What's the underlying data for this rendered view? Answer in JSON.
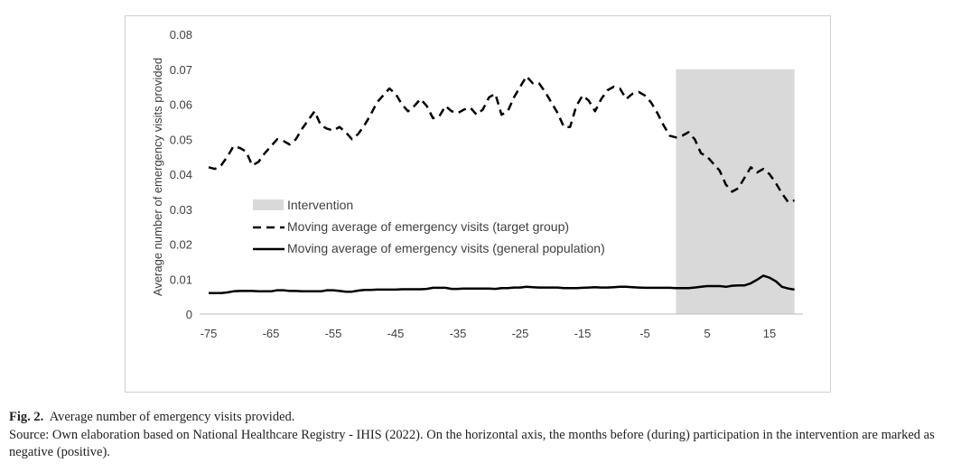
{
  "caption": {
    "label": "Fig. 2.",
    "title": "Average number of emergency visits provided.",
    "source": "Source: Own elaboration based on National Healthcare Registry - IHIS (2022). On the horizontal axis, the months before (during) participation in the intervention are marked as negative (positive)."
  },
  "chart_data": {
    "type": "line",
    "title": "",
    "xlabel": "",
    "ylabel": "Average number of emergency visits provided",
    "xlim": [
      -75,
      20
    ],
    "ylim": [
      0,
      0.08
    ],
    "x_ticks": [
      "-75",
      "-65",
      "-55",
      "-45",
      "-35",
      "-25",
      "-15",
      "-5",
      "5",
      "15"
    ],
    "x_tick_values": [
      -75,
      -65,
      -55,
      -45,
      -35,
      -25,
      -15,
      -5,
      5,
      15
    ],
    "y_ticks": [
      "0",
      "0.01",
      "0.02",
      "0.03",
      "0.04",
      "0.05",
      "0.06",
      "0.07",
      "0.08"
    ],
    "y_tick_values": [
      0,
      0.01,
      0.02,
      0.03,
      0.04,
      0.05,
      0.06,
      0.07,
      0.08
    ],
    "grid": false,
    "legend_position": "center-left",
    "shaded_region": {
      "name": "Intervention",
      "x": [
        0,
        19
      ],
      "color": "#d9d9d9"
    },
    "series": [
      {
        "name": "Moving average of emergency visits (target group)",
        "style": "dashed",
        "color": "#000000",
        "x": [
          -75,
          -74,
          -73,
          -72,
          -71,
          -70,
          -69,
          -68,
          -67,
          -66,
          -65,
          -64,
          -63,
          -62,
          -61,
          -60,
          -59,
          -58,
          -57,
          -56,
          -55,
          -54,
          -53,
          -52,
          -51,
          -50,
          -49,
          -48,
          -47,
          -46,
          -45,
          -44,
          -43,
          -42,
          -41,
          -40,
          -39,
          -38,
          -37,
          -36,
          -35,
          -34,
          -33,
          -32,
          -31,
          -30,
          -29,
          -28,
          -27,
          -26,
          -25,
          -24,
          -23,
          -22,
          -21,
          -20,
          -19,
          -18,
          -17,
          -16,
          -15,
          -14,
          -13,
          -12,
          -11,
          -10,
          -9,
          -8,
          -7,
          -6,
          -5,
          -4,
          -3,
          -2,
          -1,
          0,
          1,
          2,
          3,
          4,
          5,
          6,
          7,
          8,
          9,
          10,
          11,
          12,
          13,
          14,
          15,
          16,
          17,
          18,
          19
        ],
        "values": [
          0.042,
          0.0415,
          0.0425,
          0.045,
          0.048,
          0.0475,
          0.0465,
          0.0425,
          0.0435,
          0.046,
          0.048,
          0.05,
          0.0495,
          0.0485,
          0.05,
          0.053,
          0.0555,
          0.058,
          0.054,
          0.053,
          0.0525,
          0.0535,
          0.052,
          0.05,
          0.0515,
          0.054,
          0.057,
          0.0605,
          0.0625,
          0.0645,
          0.063,
          0.06,
          0.058,
          0.0595,
          0.0615,
          0.0595,
          0.056,
          0.0565,
          0.0595,
          0.058,
          0.0575,
          0.0585,
          0.059,
          0.057,
          0.0585,
          0.062,
          0.063,
          0.057,
          0.058,
          0.062,
          0.065,
          0.068,
          0.066,
          0.066,
          0.0635,
          0.0605,
          0.0575,
          0.0535,
          0.0535,
          0.0595,
          0.0625,
          0.061,
          0.058,
          0.0615,
          0.064,
          0.065,
          0.0645,
          0.0615,
          0.063,
          0.0635,
          0.0625,
          0.0605,
          0.0575,
          0.054,
          0.051,
          0.0505,
          0.051,
          0.052,
          0.05,
          0.046,
          0.045,
          0.043,
          0.041,
          0.037,
          0.035,
          0.036,
          0.039,
          0.042,
          0.0405,
          0.0415,
          0.04,
          0.0375,
          0.0345,
          0.032,
          0.0325
        ]
      },
      {
        "name": "Moving average of emergency visits (general population)",
        "style": "solid",
        "color": "#000000",
        "x": [
          -75,
          -74,
          -73,
          -72,
          -71,
          -70,
          -69,
          -68,
          -67,
          -66,
          -65,
          -64,
          -63,
          -62,
          -61,
          -60,
          -59,
          -58,
          -57,
          -56,
          -55,
          -54,
          -53,
          -52,
          -51,
          -50,
          -49,
          -48,
          -47,
          -46,
          -45,
          -44,
          -43,
          -42,
          -41,
          -40,
          -39,
          -38,
          -37,
          -36,
          -35,
          -34,
          -33,
          -32,
          -31,
          -30,
          -29,
          -28,
          -27,
          -26,
          -25,
          -24,
          -23,
          -22,
          -21,
          -20,
          -19,
          -18,
          -17,
          -16,
          -15,
          -14,
          -13,
          -12,
          -11,
          -10,
          -9,
          -8,
          -7,
          -6,
          -5,
          -4,
          -3,
          -2,
          -1,
          0,
          1,
          2,
          3,
          4,
          5,
          6,
          7,
          8,
          9,
          10,
          11,
          12,
          13,
          14,
          15,
          16,
          17,
          18,
          19
        ],
        "values": [
          0.006,
          0.006,
          0.006,
          0.0062,
          0.0065,
          0.0066,
          0.0066,
          0.0066,
          0.0065,
          0.0065,
          0.0065,
          0.0068,
          0.0068,
          0.0066,
          0.0066,
          0.0065,
          0.0065,
          0.0065,
          0.0065,
          0.0068,
          0.0068,
          0.0066,
          0.0064,
          0.0064,
          0.0067,
          0.0069,
          0.0069,
          0.007,
          0.007,
          0.007,
          0.007,
          0.0071,
          0.0071,
          0.0071,
          0.0071,
          0.0072,
          0.0075,
          0.0075,
          0.0075,
          0.0072,
          0.0072,
          0.0073,
          0.0073,
          0.0073,
          0.0073,
          0.0073,
          0.0072,
          0.0074,
          0.0074,
          0.0076,
          0.0076,
          0.0078,
          0.0077,
          0.0076,
          0.0076,
          0.0076,
          0.0076,
          0.0074,
          0.0074,
          0.0074,
          0.0075,
          0.0076,
          0.0077,
          0.0076,
          0.0076,
          0.0077,
          0.0078,
          0.0078,
          0.0077,
          0.0076,
          0.0075,
          0.0075,
          0.0075,
          0.0075,
          0.0075,
          0.0074,
          0.0074,
          0.0074,
          0.0076,
          0.0078,
          0.008,
          0.008,
          0.008,
          0.0078,
          0.0081,
          0.0082,
          0.0082,
          0.0088,
          0.0098,
          0.011,
          0.0104,
          0.0094,
          0.0078,
          0.0073,
          0.007
        ]
      }
    ]
  }
}
